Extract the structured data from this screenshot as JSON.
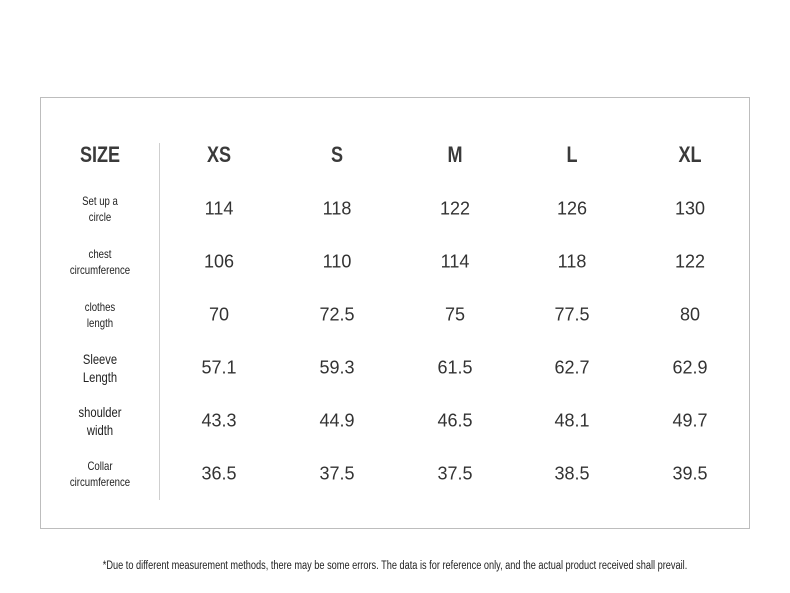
{
  "table": {
    "header": [
      "SIZE",
      "XS",
      "S",
      "M",
      "L",
      "XL"
    ],
    "rows": [
      {
        "label": [
          "Set up a",
          "circle"
        ],
        "values": [
          114,
          118,
          122,
          126,
          130
        ]
      },
      {
        "label": [
          "chest",
          "circumference"
        ],
        "values": [
          106,
          110,
          114,
          118,
          122
        ]
      },
      {
        "label": [
          "clothes",
          "length"
        ],
        "values": [
          70,
          72.5,
          75,
          77.5,
          80
        ]
      },
      {
        "label": [
          "Sleeve",
          "Length"
        ],
        "values": [
          57.1,
          59.3,
          61.5,
          62.7,
          62.9
        ]
      },
      {
        "label": [
          "shoulder",
          "width"
        ],
        "values": [
          43.3,
          44.9,
          46.5,
          48.1,
          49.7
        ]
      },
      {
        "label": [
          "Collar",
          "circumference"
        ],
        "values": [
          36.5,
          37.5,
          37.5,
          38.5,
          39.5
        ]
      }
    ]
  },
  "footnote": "*Due to different measurement methods, there may be some errors. The data is for reference only, and the actual product received shall prevail."
}
